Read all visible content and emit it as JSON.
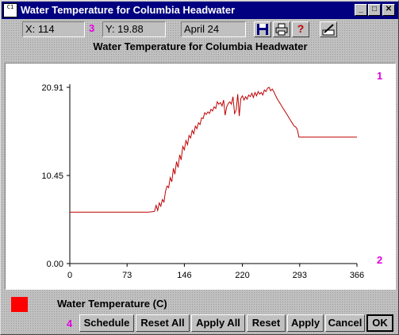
{
  "window": {
    "icon_text": "C1",
    "title": "Water Temperature for Columbia Headwater",
    "controls": {
      "minimize": "_",
      "maximize": "□",
      "close": "✕"
    }
  },
  "readouts": {
    "x": "X: 114",
    "y": "Y: 19.88",
    "date": "April 24"
  },
  "toolbar": {
    "save_icon": "save-icon",
    "print_icon": "print-icon",
    "help_icon": "help-icon",
    "help_glyph": "?",
    "edit_icon": "edit-icon"
  },
  "markers": {
    "m1": "1",
    "m2": "2",
    "m3": "3",
    "m4": "4"
  },
  "legend": {
    "label": "Water Temperature (C)",
    "color": "#ff0000"
  },
  "buttons": {
    "schedule": "Schedule",
    "reset_all": "Reset All",
    "apply_all": "Apply All",
    "reset": "Reset",
    "apply": "Apply",
    "cancel": "Cancel",
    "ok": "OK"
  },
  "chart_data": {
    "type": "line",
    "title": "Water Temperature for Columbia Headwater",
    "xlabel": "",
    "ylabel": "",
    "xlim": [
      0,
      366
    ],
    "ylim": [
      0,
      20.91
    ],
    "x_ticks": [
      "0",
      "73",
      "146",
      "220",
      "293",
      "366"
    ],
    "y_ticks": [
      "0.00",
      "10.45",
      "20.91"
    ],
    "grid": false,
    "line_color": "#c00000",
    "series": [
      {
        "name": "Water Temperature (C)",
        "x": [
          0,
          20,
          40,
          60,
          80,
          100,
          105,
          108,
          110,
          112,
          114,
          116,
          118,
          120,
          122,
          124,
          126,
          128,
          130,
          132,
          134,
          136,
          138,
          140,
          142,
          144,
          146,
          148,
          150,
          152,
          154,
          156,
          158,
          160,
          162,
          164,
          166,
          168,
          170,
          172,
          174,
          176,
          178,
          180,
          182,
          184,
          186,
          188,
          190,
          192,
          194,
          196,
          198,
          200,
          202,
          204,
          206,
          208,
          210,
          212,
          214,
          216,
          218,
          220,
          222,
          224,
          226,
          228,
          230,
          232,
          234,
          236,
          238,
          240,
          242,
          244,
          246,
          248,
          250,
          252,
          254,
          256,
          258,
          260,
          262,
          264,
          266,
          268,
          270,
          272,
          274,
          276,
          278,
          280,
          282,
          284,
          286,
          288,
          290,
          292,
          294,
          310,
          330,
          350,
          366
        ],
        "y": [
          6.1,
          6.1,
          6.1,
          6.1,
          6.1,
          6.1,
          6.15,
          6.2,
          6.9,
          6.3,
          7.2,
          6.8,
          7.6,
          7.3,
          8.6,
          9.2,
          9.0,
          10.2,
          9.7,
          11.3,
          10.6,
          12.1,
          11.4,
          12.9,
          12.3,
          13.9,
          13.5,
          14.6,
          14.1,
          15.2,
          14.9,
          15.8,
          15.4,
          16.3,
          16.0,
          16.7,
          16.5,
          17.3,
          17.2,
          17.9,
          17.7,
          18.0,
          17.8,
          18.3,
          18.1,
          18.6,
          18.4,
          19.2,
          18.9,
          19.1,
          18.7,
          19.4,
          17.6,
          18.6,
          19.0,
          19.2,
          18.9,
          19.8,
          17.8,
          18.2,
          20.1,
          17.5,
          19.6,
          19.9,
          19.4,
          19.8,
          19.5,
          20.0,
          19.8,
          20.2,
          19.7,
          20.3,
          19.9,
          20.4,
          20.1,
          20.3,
          20.0,
          20.6,
          20.4,
          20.8,
          20.91,
          20.5,
          20.7,
          20.4,
          20.0,
          19.6,
          19.3,
          19.0,
          18.7,
          18.4,
          18.1,
          17.8,
          17.5,
          17.2,
          16.9,
          16.6,
          16.3,
          16.2,
          15.9,
          15.0,
          15.0,
          15.0,
          15.0,
          15.0,
          15.0
        ]
      }
    ]
  }
}
